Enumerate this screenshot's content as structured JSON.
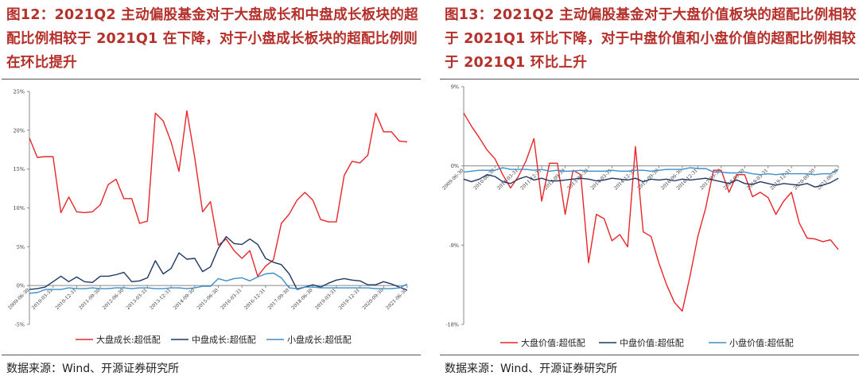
{
  "source_text": "数据来源：Wind、开源证券研究所",
  "chart_data": [
    {
      "type": "line",
      "title": "图12：2021Q2 主动偏股基金对于大盘成长和中盘成长板块的超配比例相较于 2021Q1 在下降，对于小盘成长板块的超配比例则在环比提升",
      "xlabel": "",
      "ylabel": "",
      "ylim": [
        -0.05,
        0.25
      ],
      "yticks": [
        -0.05,
        0,
        0.05,
        0.1,
        0.15,
        0.2,
        0.25
      ],
      "ytick_labels": [
        "-5%",
        "0%",
        "5%",
        "10%",
        "15%",
        "20%",
        "25%"
      ],
      "grid": false,
      "legend": "bottom",
      "x": [
        "2009-06-30",
        "2009-09-30",
        "2009-12-31",
        "2010-03-31",
        "2010-06-30",
        "2010-09-30",
        "2010-12-31",
        "2011-03-31",
        "2011-06-30",
        "2011-09-30",
        "2011-12-31",
        "2012-03-31",
        "2012-06-30",
        "2012-09-30",
        "2012-12-31",
        "2013-03-31",
        "2013-06-30",
        "2013-09-30",
        "2013-12-31",
        "2014-03-31",
        "2014-06-30",
        "2014-09-30",
        "2014-12-31",
        "2015-03-31",
        "2015-06-30",
        "2015-09-30",
        "2015-12-31",
        "2016-03-31",
        "2016-06-30",
        "2016-09-30",
        "2016-12-31",
        "2017-03-31",
        "2017-06-30",
        "2017-09-30",
        "2017-12-31",
        "2018-03-31",
        "2018-06-30",
        "2018-09-30",
        "2018-12-31",
        "2019-03-31",
        "2019-06-30",
        "2019-09-30",
        "2019-12-31",
        "2020-03-31",
        "2020-06-30",
        "2020-09-30",
        "2020-12-31",
        "2021-03-31",
        "2021-06-30"
      ],
      "xtick_labels": [
        "2009-06-30",
        "2010-03-31",
        "2010-12-31",
        "2011-09-30",
        "2012-06-30",
        "2013-03-31",
        "2013-12-31",
        "2014-09-30",
        "2015-06-30",
        "2016-03-31",
        "2016-12-31",
        "2017-09-30",
        "2018-06-30",
        "2019-03-31",
        "2019-12-31",
        "2020-09-30",
        "2021-06-30"
      ],
      "series": [
        {
          "name": "大盘成长:超低配",
          "color": "#e8262a",
          "values": [
            0.19,
            0.165,
            0.166,
            0.166,
            0.094,
            0.114,
            0.095,
            0.094,
            0.095,
            0.104,
            0.13,
            0.137,
            0.112,
            0.112,
            0.08,
            0.083,
            0.222,
            0.212,
            0.185,
            0.147,
            0.225,
            0.165,
            0.095,
            0.108,
            0.052,
            0.06,
            0.045,
            0.035,
            0.045,
            0.012,
            0.025,
            0.033,
            0.08,
            0.092,
            0.11,
            0.12,
            0.11,
            0.085,
            0.082,
            0.082,
            0.142,
            0.16,
            0.158,
            0.168,
            0.222,
            0.198,
            0.198,
            0.186,
            0.185
          ]
        },
        {
          "name": "中盘成长:超低配",
          "color": "#1f3864",
          "values": [
            -0.005,
            -0.004,
            -0.002,
            0.005,
            0.012,
            0.005,
            0.011,
            0.005,
            0.004,
            0.012,
            0.012,
            0.014,
            0.017,
            0.005,
            0.006,
            0.01,
            0.032,
            0.015,
            0.022,
            0.042,
            0.034,
            0.035,
            0.018,
            0.024,
            0.048,
            0.063,
            0.054,
            0.053,
            0.06,
            0.053,
            0.035,
            0.03,
            0.027,
            0.015,
            -0.005,
            -0.002,
            0.001,
            -0.002,
            0.003,
            0.007,
            0.009,
            0.007,
            0.006,
            0.001,
            0.001,
            0.005,
            0.002,
            -0.002,
            -0.006
          ]
        },
        {
          "name": "小盘成长:超低配",
          "color": "#3d8fc9",
          "values": [
            -0.01,
            -0.009,
            -0.005,
            -0.005,
            -0.005,
            -0.003,
            -0.004,
            -0.004,
            -0.003,
            -0.004,
            -0.004,
            -0.003,
            -0.003,
            -0.004,
            -0.003,
            -0.003,
            -0.004,
            -0.004,
            -0.003,
            -0.003,
            -0.004,
            -0.003,
            -0.001,
            -0.001,
            0.009,
            0.006,
            0.009,
            0.01,
            0.006,
            0.011,
            0.015,
            0.016,
            0.01,
            -0.003,
            -0.004,
            -0.002,
            -0.002,
            -0.003,
            -0.003,
            -0.003,
            -0.003,
            -0.003,
            -0.003,
            -0.003,
            -0.004,
            -0.004,
            -0.004,
            -0.003,
            0.002
          ]
        }
      ]
    },
    {
      "type": "line",
      "title": "图13：2021Q2 主动偏股基金对于大盘价值板块的超配比例相较于 2021Q1 环比下降，对于中盘价值和小盘价值的超配比例相较于 2021Q1 环比上升",
      "xlabel": "",
      "ylabel": "",
      "ylim": [
        -0.18,
        0.09
      ],
      "yticks": [
        -0.18,
        -0.09,
        0,
        0.09
      ],
      "ytick_labels": [
        "-18%",
        "-9%",
        "0%",
        "9%"
      ],
      "grid": false,
      "legend": "bottom",
      "x": [
        "2009-06-30",
        "2009-09-30",
        "2009-12-31",
        "2010-03-31",
        "2010-06-30",
        "2010-09-30",
        "2010-12-31",
        "2011-03-31",
        "2011-06-30",
        "2011-09-30",
        "2011-12-31",
        "2012-03-31",
        "2012-06-30",
        "2012-09-30",
        "2012-12-31",
        "2013-03-31",
        "2013-06-30",
        "2013-09-30",
        "2013-12-31",
        "2014-03-31",
        "2014-06-30",
        "2014-09-30",
        "2014-12-31",
        "2015-03-31",
        "2015-06-30",
        "2015-09-30",
        "2015-12-31",
        "2016-03-31",
        "2016-06-30",
        "2016-09-30",
        "2016-12-31",
        "2017-03-31",
        "2017-06-30",
        "2017-09-30",
        "2017-12-31",
        "2018-03-31",
        "2018-06-30",
        "2018-09-30",
        "2018-12-31",
        "2019-03-31",
        "2019-06-30",
        "2019-09-30",
        "2019-12-31",
        "2020-03-31",
        "2020-06-30",
        "2020-09-30",
        "2020-12-31",
        "2021-03-31",
        "2021-06-30"
      ],
      "xtick_labels": [
        "2009-06-30",
        "2010-06-30",
        "2011-03-31",
        "2011-12-31",
        "2012-09-30",
        "2013-06-30",
        "2014-03-31",
        "2014-12-31",
        "2015-09-30",
        "2016-06-30",
        "2016-12-31",
        "2017-09-30",
        "2018-06-30",
        "2019-03-31",
        "2019-12-31",
        "2020-09-30",
        "2021-06-30"
      ],
      "series": [
        {
          "name": "大盘价值:超低配",
          "color": "#e8262a",
          "values": [
            0.06,
            0.045,
            0.032,
            0.018,
            0.008,
            -0.01,
            -0.025,
            -0.012,
            0.006,
            0.031,
            -0.04,
            0.003,
            0.003,
            -0.055,
            -0.005,
            -0.01,
            -0.11,
            -0.055,
            -0.06,
            -0.085,
            -0.078,
            -0.092,
            0.022,
            -0.075,
            -0.08,
            -0.11,
            -0.135,
            -0.155,
            -0.165,
            -0.125,
            -0.08,
            -0.048,
            -0.005,
            -0.005,
            -0.03,
            -0.01,
            -0.01,
            -0.035,
            -0.03,
            -0.036,
            -0.055,
            -0.04,
            -0.03,
            -0.065,
            -0.082,
            -0.083,
            -0.086,
            -0.084,
            -0.095
          ]
        },
        {
          "name": "中盘价值:超低配",
          "color": "#1f3864",
          "values": [
            -0.015,
            -0.018,
            -0.015,
            -0.01,
            -0.012,
            -0.018,
            -0.02,
            -0.015,
            -0.012,
            -0.016,
            -0.014,
            -0.017,
            -0.017,
            -0.016,
            -0.015,
            -0.014,
            -0.015,
            -0.017,
            -0.016,
            -0.014,
            -0.015,
            -0.016,
            -0.014,
            -0.018,
            -0.015,
            -0.016,
            -0.015,
            -0.017,
            -0.015,
            -0.016,
            -0.015,
            -0.014,
            -0.016,
            -0.018,
            -0.02,
            -0.016,
            -0.02,
            -0.021,
            -0.018,
            -0.02,
            -0.022,
            -0.02,
            -0.021,
            -0.022,
            -0.02,
            -0.024,
            -0.022,
            -0.019,
            -0.014
          ]
        },
        {
          "name": "小盘价值:超低配",
          "color": "#3d8fc9",
          "values": [
            -0.007,
            -0.006,
            -0.005,
            -0.005,
            -0.005,
            -0.002,
            -0.004,
            -0.004,
            -0.004,
            -0.005,
            -0.004,
            -0.006,
            -0.005,
            -0.006,
            -0.006,
            -0.005,
            -0.006,
            -0.006,
            -0.006,
            -0.005,
            -0.006,
            -0.006,
            -0.005,
            -0.005,
            -0.006,
            -0.005,
            -0.004,
            -0.004,
            -0.004,
            -0.002,
            -0.003,
            -0.003,
            -0.007,
            -0.007,
            -0.008,
            -0.008,
            -0.007,
            -0.009,
            -0.01,
            -0.009,
            -0.01,
            -0.009,
            -0.009,
            -0.009,
            -0.009,
            -0.01,
            -0.009,
            -0.009,
            -0.004
          ]
        }
      ]
    }
  ]
}
